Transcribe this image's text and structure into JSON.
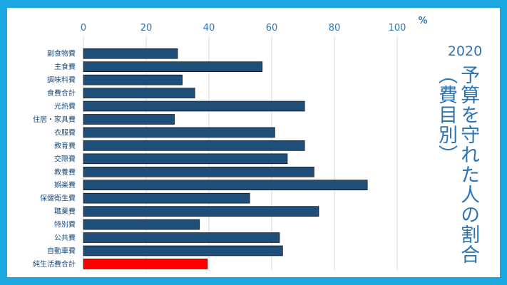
{
  "chart_data": {
    "type": "bar",
    "orientation": "horizontal",
    "year": "2020",
    "title": "予算を守れた人の割合（費目別）",
    "unit": "%",
    "xlim": [
      0,
      100
    ],
    "xticks": [
      0,
      20,
      40,
      60,
      80,
      100
    ],
    "grid": true,
    "categories": [
      "副食物費",
      "主食費",
      "調味料費",
      "食費合計",
      "光熱費",
      "住居・家具費",
      "衣服費",
      "教育費",
      "交際費",
      "教養費",
      "娯楽費",
      "保健衛生費",
      "職業費",
      "特別費",
      "公共費",
      "自動車費",
      "純生活費合計"
    ],
    "values": [
      30,
      57,
      31.5,
      35.5,
      70.5,
      29,
      61,
      70.5,
      65,
      73.5,
      90.5,
      53,
      75,
      37,
      62.5,
      63.5,
      39.5
    ],
    "colors": {
      "bar": "#1f4e79",
      "highlight": "#ff0000",
      "text": "#2e75b6",
      "background": "#1aa7e0"
    },
    "highlight_category": "純生活費合計"
  }
}
